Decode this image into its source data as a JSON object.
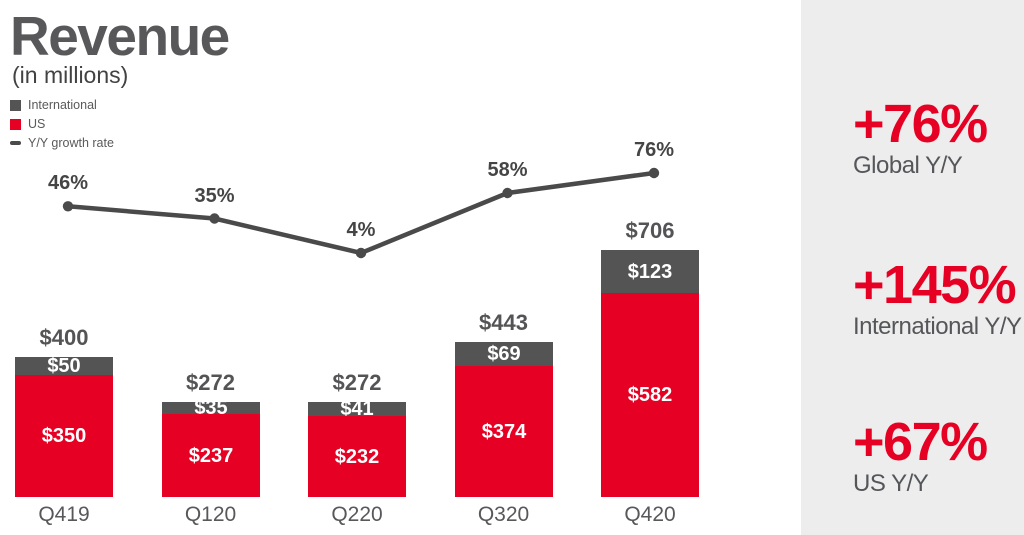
{
  "header": {
    "title": "Revenue",
    "subtitle": "(in millions)"
  },
  "legend": {
    "items": [
      {
        "label": "International",
        "swatch": "square",
        "color": "#545454"
      },
      {
        "label": "US",
        "swatch": "square",
        "color": "#e60023"
      },
      {
        "label": "Y/Y growth rate",
        "swatch": "dash",
        "color": "#4a4a4a"
      }
    ]
  },
  "chart_data": {
    "type": "bar",
    "subtype": "stacked_bars_with_growth_line",
    "title": "Revenue (in millions)",
    "categories": [
      "Q419",
      "Q120",
      "Q220",
      "Q320",
      "Q420"
    ],
    "series": [
      {
        "name": "US",
        "color": "#e60023",
        "values": [
          350,
          237,
          232,
          374,
          582
        ],
        "labels": [
          "$350",
          "$237",
          "$232",
          "$374",
          "$582"
        ]
      },
      {
        "name": "International",
        "color": "#545454",
        "values": [
          50,
          35,
          41,
          69,
          123
        ],
        "labels": [
          "$50",
          "$35",
          "$41",
          "$69",
          "$123"
        ]
      }
    ],
    "totals": {
      "values": [
        400,
        272,
        272,
        443,
        706
      ],
      "labels": [
        "$400",
        "$272",
        "$272",
        "$443",
        "$706"
      ]
    },
    "growth_line": {
      "name": "Y/Y growth rate",
      "color": "#4a4a4a",
      "values_pct": [
        46,
        35,
        4,
        58,
        76
      ],
      "labels": [
        "46%",
        "35%",
        "4%",
        "58%",
        "76%"
      ]
    },
    "legend_position": "top-left",
    "grid": false,
    "unit": "USD millions"
  },
  "sidebar": {
    "background": "#ededed",
    "accent_color": "#e60023",
    "stats": [
      {
        "value": "+76%",
        "label": "Global Y/Y"
      },
      {
        "value": "+145%",
        "label": "International Y/Y"
      },
      {
        "value": "+67%",
        "label": "US Y/Y"
      }
    ]
  }
}
